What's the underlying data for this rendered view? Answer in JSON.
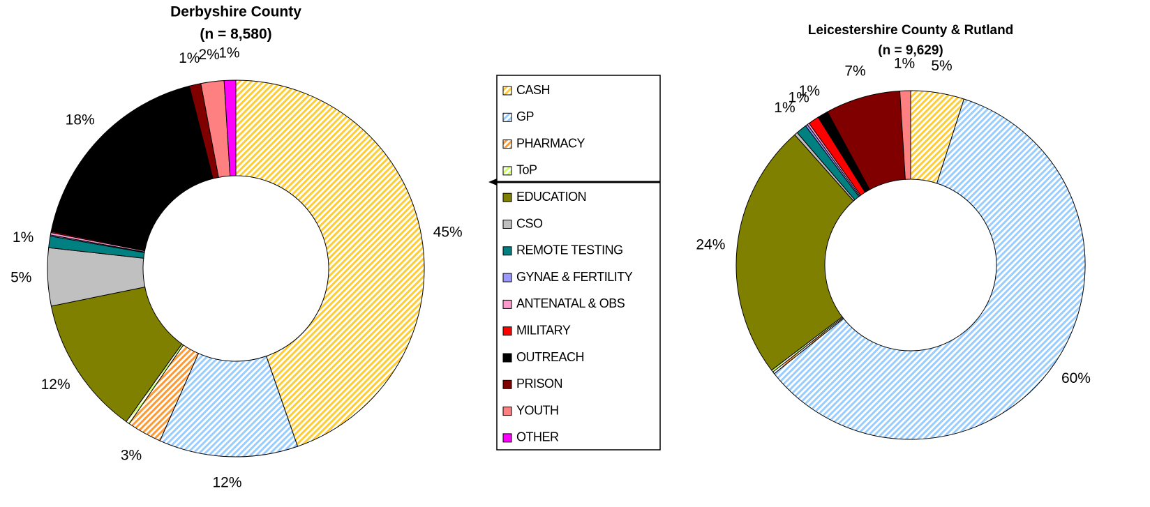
{
  "chart_data": [
    {
      "type": "donut",
      "title": "Derbyshire County",
      "subtitle": "(n = 8,580)",
      "categories": [
        "CASH",
        "GP",
        "PHARMACY",
        "ToP",
        "EDUCATION",
        "CSO",
        "REMOTE TESTING",
        "GYNAE & FERTILITY",
        "ANTENATAL & OBS",
        "MILITARY",
        "OUTREACH",
        "PRISON",
        "YOUTH",
        "OTHER"
      ],
      "values": [
        45,
        12,
        3,
        0.3,
        12,
        5,
        1,
        0.1,
        0.2,
        0.1,
        18,
        1,
        2,
        1
      ],
      "value_labels": [
        "45%",
        "12%",
        "3%",
        null,
        "12%",
        "5%",
        "1%",
        null,
        null,
        null,
        "18%",
        "1%",
        "2%",
        "1%"
      ],
      "colors": [
        "#ffcc33",
        "#99ccff",
        "#ff9933",
        "#ccff66",
        "#808000",
        "#c0c0c0",
        "#008080",
        "#9999ff",
        "#ff99cc",
        "#ff0000",
        "#000000",
        "#800000",
        "#ff8080",
        "#ff00ff"
      ],
      "patterns": [
        "striped",
        "striped",
        "striped",
        "striped",
        "solid",
        "solid",
        "solid",
        "solid",
        "solid",
        "solid",
        "solid",
        "solid",
        "solid",
        "solid"
      ]
    },
    {
      "type": "donut",
      "title": "Leicestershire County & Rutland",
      "subtitle": "(n = 9,629)",
      "categories": [
        "CASH",
        "GP",
        "PHARMACY",
        "ToP",
        "EDUCATION",
        "CSO",
        "REMOTE TESTING",
        "GYNAE & FERTILITY",
        "ANTENATAL & OBS",
        "MILITARY",
        "OUTREACH",
        "PRISON",
        "YOUTH",
        "OTHER"
      ],
      "values": [
        5,
        60,
        0.2,
        0.2,
        24,
        0.3,
        1,
        0.2,
        0.2,
        1,
        1,
        7,
        1,
        0
      ],
      "value_labels": [
        "5%",
        "60%",
        null,
        null,
        "24%",
        null,
        "1%",
        null,
        null,
        "1%",
        "1%",
        "7%",
        "1%",
        null
      ],
      "colors": [
        "#ffcc33",
        "#99ccff",
        "#ff9933",
        "#ccff66",
        "#808000",
        "#c0c0c0",
        "#008080",
        "#9999ff",
        "#ff99cc",
        "#ff0000",
        "#000000",
        "#800000",
        "#ff8080",
        "#ff00ff"
      ],
      "patterns": [
        "striped",
        "striped",
        "striped",
        "striped",
        "solid",
        "solid",
        "solid",
        "solid",
        "solid",
        "solid",
        "solid",
        "solid",
        "solid",
        "solid"
      ]
    }
  ]
}
